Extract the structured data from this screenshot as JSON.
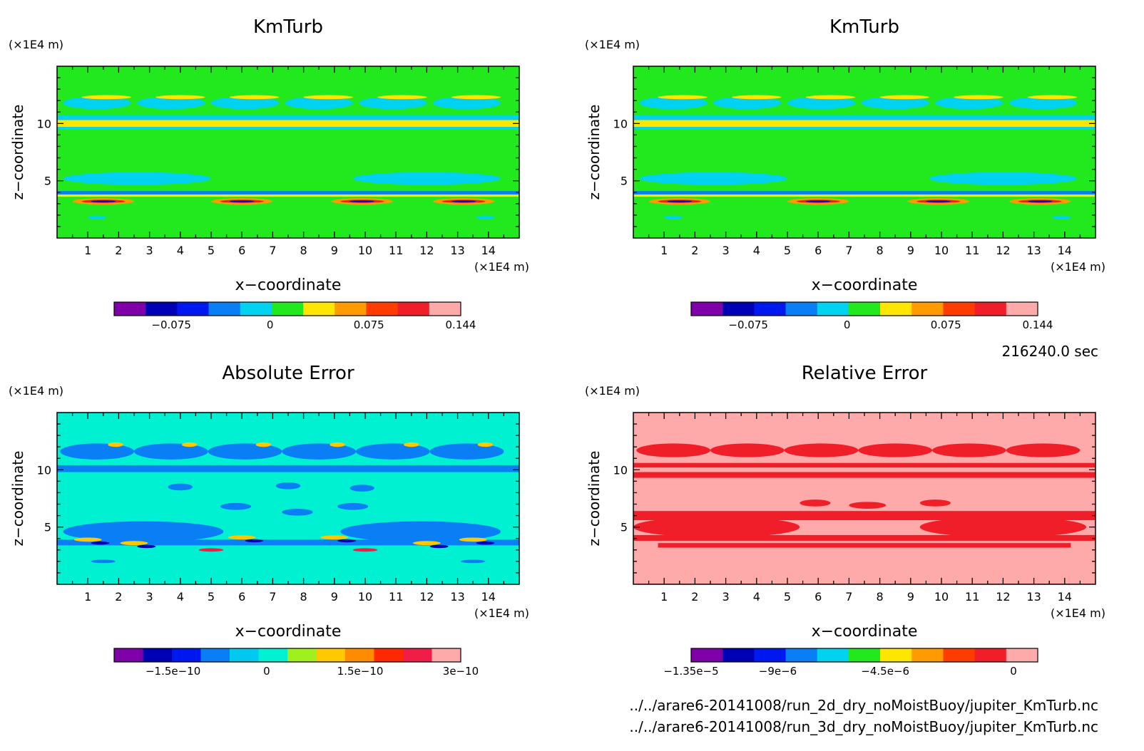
{
  "time_label": "216240.0 sec",
  "file_paths": [
    "../../arare6-20141008/run_2d_dry_noMoistBuoy/jupiter_KmTurb.nc",
    "../../arare6-20141008/run_3d_dry_noMoistBuoy/jupiter_KmTurb.nc"
  ],
  "colors": {
    "frame": "#000000",
    "palette": [
      "#7f00a8",
      "#0000b4",
      "#0018f0",
      "#0a7ef5",
      "#00d2f0",
      "#22e81e",
      "#ffe600",
      "#ff9a00",
      "#ff3c00",
      "#f01e28",
      "#ffaaaa"
    ],
    "abs_palette": [
      "#7f00a8",
      "#0000b4",
      "#0018f0",
      "#0a7ef5",
      "#00c8f0",
      "#00f0d2",
      "#a0f01e",
      "#ffc800",
      "#ff8c00",
      "#ff2800",
      "#f01e46",
      "#ffaaaa"
    ]
  },
  "chart_data": [
    {
      "type": "heatmap",
      "title": "KmTurb",
      "xlabel": "x−coordinate",
      "ylabel": "z−coordinate",
      "x_unit": "(×1E4 m)",
      "y_unit": "(×1E4 m)",
      "xlim": [
        0,
        15
      ],
      "ylim": [
        0,
        15
      ],
      "x_ticks": [
        "1",
        "2",
        "3",
        "4",
        "5",
        "6",
        "7",
        "8",
        "9",
        "10",
        "11",
        "12",
        "13",
        "14"
      ],
      "y_ticks": [
        "5",
        "10"
      ],
      "colorbar_ticks": [
        "−0.075",
        "0",
        "0.075",
        "0.144"
      ],
      "background_level": "0"
    },
    {
      "type": "heatmap",
      "title": "KmTurb",
      "xlabel": "x−coordinate",
      "ylabel": "z−coordinate",
      "x_unit": "(×1E4 m)",
      "y_unit": "(×1E4 m)",
      "xlim": [
        0,
        15
      ],
      "ylim": [
        0,
        15
      ],
      "x_ticks": [
        "1",
        "2",
        "3",
        "4",
        "5",
        "6",
        "7",
        "8",
        "9",
        "10",
        "11",
        "12",
        "13",
        "14"
      ],
      "y_ticks": [
        "5",
        "10"
      ],
      "colorbar_ticks": [
        "−0.075",
        "0",
        "0.075",
        "0.144"
      ],
      "background_level": "0"
    },
    {
      "type": "heatmap",
      "title": "Absolute Error",
      "xlabel": "x−coordinate",
      "ylabel": "z−coordinate",
      "x_unit": "(×1E4 m)",
      "y_unit": "(×1E4 m)",
      "xlim": [
        0,
        15
      ],
      "ylim": [
        0,
        15
      ],
      "x_ticks": [
        "1",
        "2",
        "3",
        "4",
        "5",
        "6",
        "7",
        "8",
        "9",
        "10",
        "11",
        "12",
        "13",
        "14"
      ],
      "y_ticks": [
        "5",
        "10"
      ],
      "colorbar_ticks": [
        "−1.5e−10",
        "0",
        "1.5e−10",
        "3e−10"
      ],
      "background_level": "0"
    },
    {
      "type": "heatmap",
      "title": "Relative Error",
      "xlabel": "x−coordinate",
      "ylabel": "z−coordinate",
      "x_unit": "(×1E4 m)",
      "y_unit": "(×1E4 m)",
      "xlim": [
        0,
        15
      ],
      "ylim": [
        0,
        15
      ],
      "x_ticks": [
        "1",
        "2",
        "3",
        "4",
        "5",
        "6",
        "7",
        "8",
        "9",
        "10",
        "11",
        "12",
        "13",
        "14"
      ],
      "y_ticks": [
        "5",
        "10"
      ],
      "colorbar_ticks": [
        "−1.35e−5",
        "−9e−6",
        "−4.5e−6",
        "0"
      ],
      "background_level": "0"
    }
  ]
}
